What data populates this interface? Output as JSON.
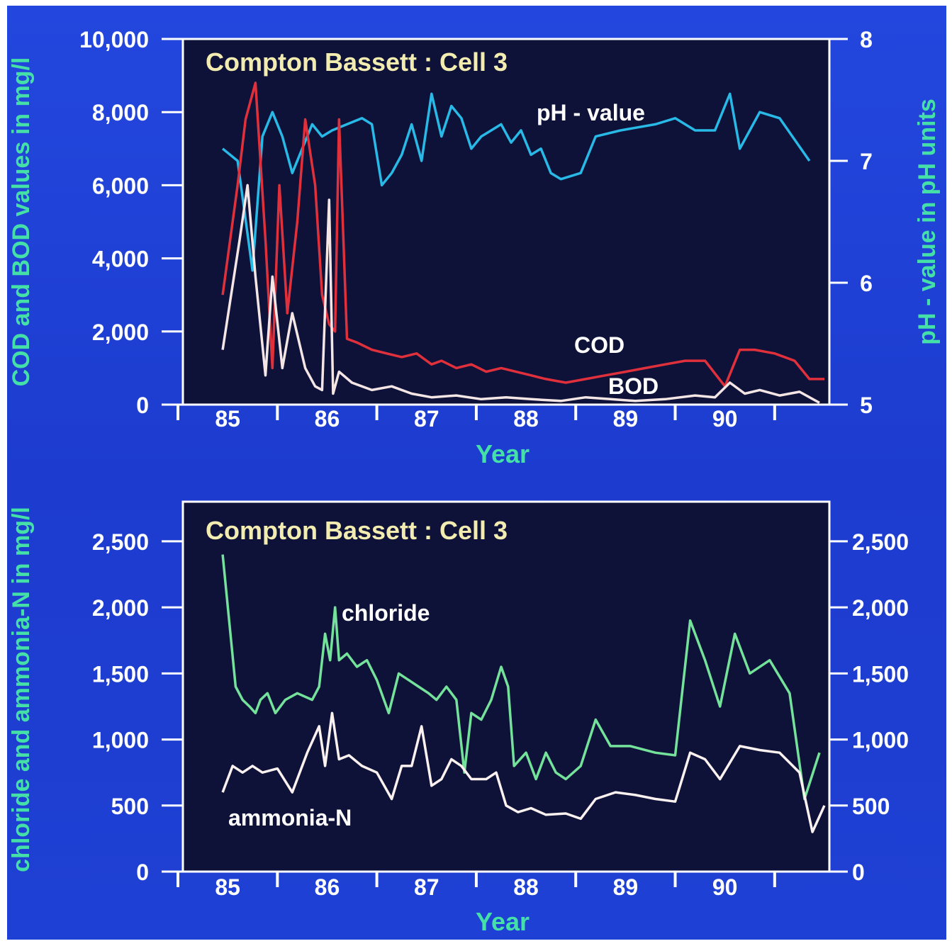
{
  "colors": {
    "background": "#1f3fd6",
    "plot_bg": "#0e1238",
    "axis": "#ffffff",
    "tick_text": "#ffffff",
    "axis_title": "#45e0a8",
    "ph_line": "#28b9e6",
    "cod_line": "#e0303c",
    "bod_line": "#f5e6e6",
    "chloride_line": "#74e29a",
    "ammonia_line": "#fbf1ee",
    "title_text": "#f2ecb0"
  },
  "chart_data": [
    {
      "type": "line",
      "title": "Compton Bassett : Cell 3",
      "xlabel": "Year",
      "ylabel": "COD and BOD values in mg/l",
      "ylabel_right": "pH - value in pH units",
      "x_ticks": [
        "85",
        "86",
        "87",
        "88",
        "89",
        "90"
      ],
      "y_ticks": [
        "10,000",
        "8,000",
        "6,000",
        "4,000",
        "2,000",
        "0"
      ],
      "y_ticks_right": [
        "8",
        "7",
        "6",
        "5"
      ],
      "xlim": [
        84.55,
        91.05
      ],
      "ylim": [
        0,
        10000
      ],
      "ylim_right": [
        5,
        8
      ],
      "grid": false,
      "series": [
        {
          "name": "pH - value",
          "axis": "right",
          "color": "#28b9e6",
          "points": [
            [
              84.95,
              7.1
            ],
            [
              85.1,
              7.0
            ],
            [
              85.25,
              6.1
            ],
            [
              85.35,
              7.2
            ],
            [
              85.45,
              7.4
            ],
            [
              85.55,
              7.2
            ],
            [
              85.65,
              6.9
            ],
            [
              85.75,
              7.1
            ],
            [
              85.85,
              7.3
            ],
            [
              85.95,
              7.2
            ],
            [
              86.05,
              7.25
            ],
            [
              86.2,
              7.3
            ],
            [
              86.35,
              7.35
            ],
            [
              86.45,
              7.3
            ],
            [
              86.55,
              6.8
            ],
            [
              86.65,
              6.9
            ],
            [
              86.75,
              7.05
            ],
            [
              86.85,
              7.3
            ],
            [
              86.95,
              7.0
            ],
            [
              87.05,
              7.55
            ],
            [
              87.15,
              7.2
            ],
            [
              87.25,
              7.45
            ],
            [
              87.35,
              7.35
            ],
            [
              87.45,
              7.1
            ],
            [
              87.55,
              7.2
            ],
            [
              87.65,
              7.25
            ],
            [
              87.75,
              7.3
            ],
            [
              87.85,
              7.15
            ],
            [
              87.95,
              7.25
            ],
            [
              88.05,
              7.05
            ],
            [
              88.15,
              7.1
            ],
            [
              88.25,
              6.9
            ],
            [
              88.35,
              6.85
            ],
            [
              88.55,
              6.9
            ],
            [
              88.7,
              7.2
            ],
            [
              88.95,
              7.25
            ],
            [
              89.3,
              7.3
            ],
            [
              89.5,
              7.35
            ],
            [
              89.7,
              7.25
            ],
            [
              89.9,
              7.25
            ],
            [
              90.05,
              7.55
            ],
            [
              90.15,
              7.1
            ],
            [
              90.35,
              7.4
            ],
            [
              90.55,
              7.35
            ],
            [
              90.85,
              7.0
            ]
          ]
        },
        {
          "name": "COD",
          "axis": "left",
          "color": "#e0303c",
          "points": [
            [
              84.95,
              3000
            ],
            [
              85.1,
              6000
            ],
            [
              85.18,
              7800
            ],
            [
              85.28,
              8800
            ],
            [
              85.38,
              4500
            ],
            [
              85.45,
              1000
            ],
            [
              85.52,
              6000
            ],
            [
              85.6,
              2500
            ],
            [
              85.7,
              5000
            ],
            [
              85.78,
              7800
            ],
            [
              85.88,
              6000
            ],
            [
              85.95,
              3000
            ],
            [
              86.02,
              2200
            ],
            [
              86.08,
              2000
            ],
            [
              86.12,
              7800
            ],
            [
              86.2,
              1800
            ],
            [
              86.3,
              1700
            ],
            [
              86.45,
              1500
            ],
            [
              86.6,
              1400
            ],
            [
              86.75,
              1300
            ],
            [
              86.9,
              1400
            ],
            [
              87.05,
              1100
            ],
            [
              87.15,
              1200
            ],
            [
              87.3,
              1000
            ],
            [
              87.45,
              1100
            ],
            [
              87.6,
              900
            ],
            [
              87.75,
              1000
            ],
            [
              87.9,
              900
            ],
            [
              88.05,
              800
            ],
            [
              88.2,
              700
            ],
            [
              88.4,
              600
            ],
            [
              88.6,
              700
            ],
            [
              88.8,
              800
            ],
            [
              89.0,
              900
            ],
            [
              89.2,
              1000
            ],
            [
              89.4,
              1100
            ],
            [
              89.6,
              1200
            ],
            [
              89.8,
              1200
            ],
            [
              90.0,
              500
            ],
            [
              90.15,
              1500
            ],
            [
              90.3,
              1500
            ],
            [
              90.5,
              1400
            ],
            [
              90.7,
              1200
            ],
            [
              90.85,
              700
            ],
            [
              91.0,
              700
            ]
          ]
        },
        {
          "name": "BOD",
          "axis": "left",
          "color": "#f5e6e6",
          "points": [
            [
              84.95,
              1500
            ],
            [
              85.12,
              4500
            ],
            [
              85.2,
              6000
            ],
            [
              85.28,
              3500
            ],
            [
              85.38,
              800
            ],
            [
              85.45,
              3500
            ],
            [
              85.55,
              1000
            ],
            [
              85.65,
              2500
            ],
            [
              85.78,
              1000
            ],
            [
              85.88,
              500
            ],
            [
              85.95,
              400
            ],
            [
              86.02,
              5600
            ],
            [
              86.06,
              300
            ],
            [
              86.12,
              900
            ],
            [
              86.25,
              600
            ],
            [
              86.45,
              400
            ],
            [
              86.65,
              500
            ],
            [
              86.85,
              300
            ],
            [
              87.05,
              200
            ],
            [
              87.3,
              250
            ],
            [
              87.55,
              150
            ],
            [
              87.8,
              200
            ],
            [
              88.05,
              150
            ],
            [
              88.35,
              100
            ],
            [
              88.6,
              200
            ],
            [
              88.85,
              150
            ],
            [
              89.1,
              100
            ],
            [
              89.4,
              150
            ],
            [
              89.7,
              250
            ],
            [
              89.9,
              200
            ],
            [
              90.05,
              600
            ],
            [
              90.2,
              300
            ],
            [
              90.35,
              400
            ],
            [
              90.55,
              250
            ],
            [
              90.75,
              350
            ],
            [
              90.95,
              50
            ]
          ]
        }
      ],
      "annotations": [
        "pH - value",
        "COD",
        "BOD"
      ]
    },
    {
      "type": "line",
      "title": "Compton Bassett : Cell 3",
      "xlabel": "Year",
      "ylabel": "chloride and ammonia-N in mg/l",
      "x_ticks": [
        "85",
        "86",
        "87",
        "88",
        "89",
        "90"
      ],
      "y_ticks": [
        "2,500",
        "2,000",
        "1,500",
        "1,000",
        "500",
        "0"
      ],
      "y_ticks_right": [
        "2,500",
        "2,000",
        "1,500",
        "1,000",
        "500",
        "0"
      ],
      "xlim": [
        84.55,
        91.05
      ],
      "ylim": [
        0,
        2800
      ],
      "grid": false,
      "series": [
        {
          "name": "chloride",
          "axis": "left",
          "color": "#74e29a",
          "points": [
            [
              84.95,
              2400
            ],
            [
              85.08,
              1400
            ],
            [
              85.15,
              1300
            ],
            [
              85.22,
              1250
            ],
            [
              85.28,
              1200
            ],
            [
              85.33,
              1300
            ],
            [
              85.4,
              1350
            ],
            [
              85.48,
              1200
            ],
            [
              85.58,
              1300
            ],
            [
              85.7,
              1350
            ],
            [
              85.85,
              1300
            ],
            [
              85.92,
              1400
            ],
            [
              85.98,
              1800
            ],
            [
              86.03,
              1600
            ],
            [
              86.08,
              2000
            ],
            [
              86.12,
              1600
            ],
            [
              86.2,
              1650
            ],
            [
              86.3,
              1550
            ],
            [
              86.4,
              1600
            ],
            [
              86.5,
              1450
            ],
            [
              86.62,
              1200
            ],
            [
              86.72,
              1500
            ],
            [
              86.82,
              1450
            ],
            [
              86.92,
              1400
            ],
            [
              87.02,
              1350
            ],
            [
              87.1,
              1300
            ],
            [
              87.2,
              1400
            ],
            [
              87.3,
              1300
            ],
            [
              87.38,
              750
            ],
            [
              87.45,
              1200
            ],
            [
              87.55,
              1150
            ],
            [
              87.65,
              1300
            ],
            [
              87.75,
              1550
            ],
            [
              87.82,
              1400
            ],
            [
              87.88,
              800
            ],
            [
              88.0,
              900
            ],
            [
              88.1,
              700
            ],
            [
              88.2,
              900
            ],
            [
              88.3,
              750
            ],
            [
              88.4,
              700
            ],
            [
              88.55,
              800
            ],
            [
              88.7,
              1150
            ],
            [
              88.85,
              950
            ],
            [
              89.05,
              950
            ],
            [
              89.3,
              900
            ],
            [
              89.5,
              880
            ],
            [
              89.65,
              1900
            ],
            [
              89.8,
              1600
            ],
            [
              89.95,
              1250
            ],
            [
              90.1,
              1800
            ],
            [
              90.25,
              1500
            ],
            [
              90.45,
              1600
            ],
            [
              90.65,
              1350
            ],
            [
              90.8,
              550
            ],
            [
              90.95,
              900
            ]
          ]
        },
        {
          "name": "ammonia-N",
          "axis": "left",
          "color": "#fbf1ee",
          "points": [
            [
              84.95,
              600
            ],
            [
              85.05,
              800
            ],
            [
              85.15,
              750
            ],
            [
              85.25,
              800
            ],
            [
              85.35,
              750
            ],
            [
              85.5,
              780
            ],
            [
              85.65,
              600
            ],
            [
              85.8,
              900
            ],
            [
              85.92,
              1100
            ],
            [
              85.98,
              800
            ],
            [
              86.05,
              1200
            ],
            [
              86.12,
              850
            ],
            [
              86.22,
              880
            ],
            [
              86.35,
              800
            ],
            [
              86.5,
              750
            ],
            [
              86.65,
              550
            ],
            [
              86.75,
              800
            ],
            [
              86.85,
              800
            ],
            [
              86.95,
              1100
            ],
            [
              87.05,
              650
            ],
            [
              87.15,
              700
            ],
            [
              87.25,
              850
            ],
            [
              87.35,
              800
            ],
            [
              87.45,
              700
            ],
            [
              87.6,
              700
            ],
            [
              87.7,
              750
            ],
            [
              87.8,
              500
            ],
            [
              87.92,
              450
            ],
            [
              88.05,
              480
            ],
            [
              88.2,
              430
            ],
            [
              88.4,
              440
            ],
            [
              88.55,
              400
            ],
            [
              88.7,
              550
            ],
            [
              88.9,
              600
            ],
            [
              89.1,
              580
            ],
            [
              89.3,
              550
            ],
            [
              89.5,
              530
            ],
            [
              89.65,
              900
            ],
            [
              89.8,
              850
            ],
            [
              89.95,
              700
            ],
            [
              90.15,
              950
            ],
            [
              90.35,
              920
            ],
            [
              90.55,
              900
            ],
            [
              90.75,
              750
            ],
            [
              90.88,
              300
            ],
            [
              91.0,
              500
            ]
          ]
        }
      ],
      "annotations": [
        "chloride",
        "ammonia-N"
      ]
    }
  ]
}
